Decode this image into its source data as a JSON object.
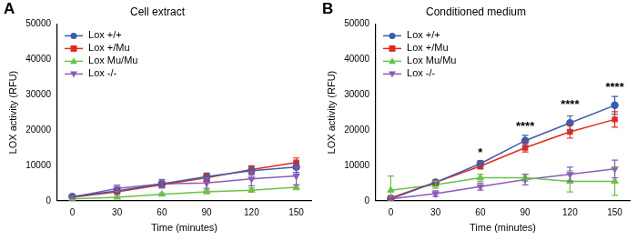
{
  "chart_data": [
    {
      "type": "line",
      "panel_label": "A",
      "title": "Cell extract",
      "x_label": "Time (minutes)",
      "y_label": "LOX activity (RFU)",
      "x": [
        0,
        30,
        60,
        90,
        120,
        150
      ],
      "xlim": [
        -10,
        160
      ],
      "xticks": [
        0,
        30,
        60,
        90,
        120,
        150
      ],
      "ylim": [
        0,
        50000
      ],
      "yticks": [
        0,
        10000,
        20000,
        30000,
        40000,
        50000
      ],
      "grid": false,
      "legend": "upper left",
      "series": [
        {
          "name": "Lox +/+",
          "color": "#3c5dab",
          "marker": "circle",
          "values": [
            1200,
            2800,
            4800,
            6800,
            8500,
            9500
          ],
          "errors": [
            300,
            600,
            800,
            1000,
            1200,
            1500
          ]
        },
        {
          "name": "Lox +/Mu",
          "color": "#e12a1e",
          "marker": "square",
          "values": [
            1000,
            2500,
            4500,
            6500,
            8800,
            10800
          ],
          "errors": [
            300,
            500,
            700,
            900,
            1100,
            1300
          ]
        },
        {
          "name": "Lox Mu/Mu",
          "color": "#6cc04a",
          "marker": "triangle",
          "values": [
            500,
            1000,
            1800,
            2500,
            3000,
            3800
          ],
          "errors": [
            200,
            300,
            400,
            500,
            600,
            700
          ]
        },
        {
          "name": "Lox -/-",
          "color": "#8c5bb8",
          "marker": "triangle_down",
          "values": [
            1000,
            3500,
            4800,
            5000,
            6200,
            7000
          ],
          "errors": [
            400,
            900,
            1200,
            1500,
            2000,
            2500
          ]
        }
      ]
    },
    {
      "type": "line",
      "panel_label": "B",
      "title": "Conditioned medium",
      "x_label": "Time (minutes)",
      "y_label": "LOX activity (RFU)",
      "x": [
        0,
        30,
        60,
        90,
        120,
        150
      ],
      "xlim": [
        -10,
        160
      ],
      "xticks": [
        0,
        30,
        60,
        90,
        120,
        150
      ],
      "ylim": [
        0,
        50000
      ],
      "yticks": [
        0,
        10000,
        20000,
        30000,
        40000,
        50000
      ],
      "grid": false,
      "legend": "upper left",
      "series": [
        {
          "name": "Lox +/+",
          "color": "#3c5dab",
          "marker": "circle",
          "values": [
            500,
            5200,
            10500,
            17000,
            22000,
            27000
          ],
          "errors": [
            300,
            500,
            800,
            1500,
            2000,
            2500
          ]
        },
        {
          "name": "Lox +/Mu",
          "color": "#e12a1e",
          "marker": "square",
          "values": [
            800,
            5200,
            9800,
            15000,
            19500,
            23000
          ],
          "errors": [
            300,
            500,
            800,
            1200,
            1800,
            2200
          ]
        },
        {
          "name": "Lox Mu/Mu",
          "color": "#6cc04a",
          "marker": "triangle",
          "values": [
            3000,
            4500,
            6500,
            6500,
            5500,
            5500
          ],
          "errors": [
            4000,
            1000,
            1000,
            1000,
            3000,
            4000
          ]
        },
        {
          "name": "Lox -/-",
          "color": "#8c5bb8",
          "marker": "triangle_down",
          "values": [
            500,
            2000,
            4000,
            6000,
            7500,
            9000
          ],
          "errors": [
            500,
            800,
            1000,
            1500,
            2000,
            2500
          ]
        }
      ],
      "annotations": [
        {
          "x": 60,
          "y": 13500,
          "text": "*"
        },
        {
          "x": 90,
          "y": 21000,
          "text": "****"
        },
        {
          "x": 120,
          "y": 27000,
          "text": "****"
        },
        {
          "x": 150,
          "y": 32000,
          "text": "****"
        }
      ]
    }
  ]
}
